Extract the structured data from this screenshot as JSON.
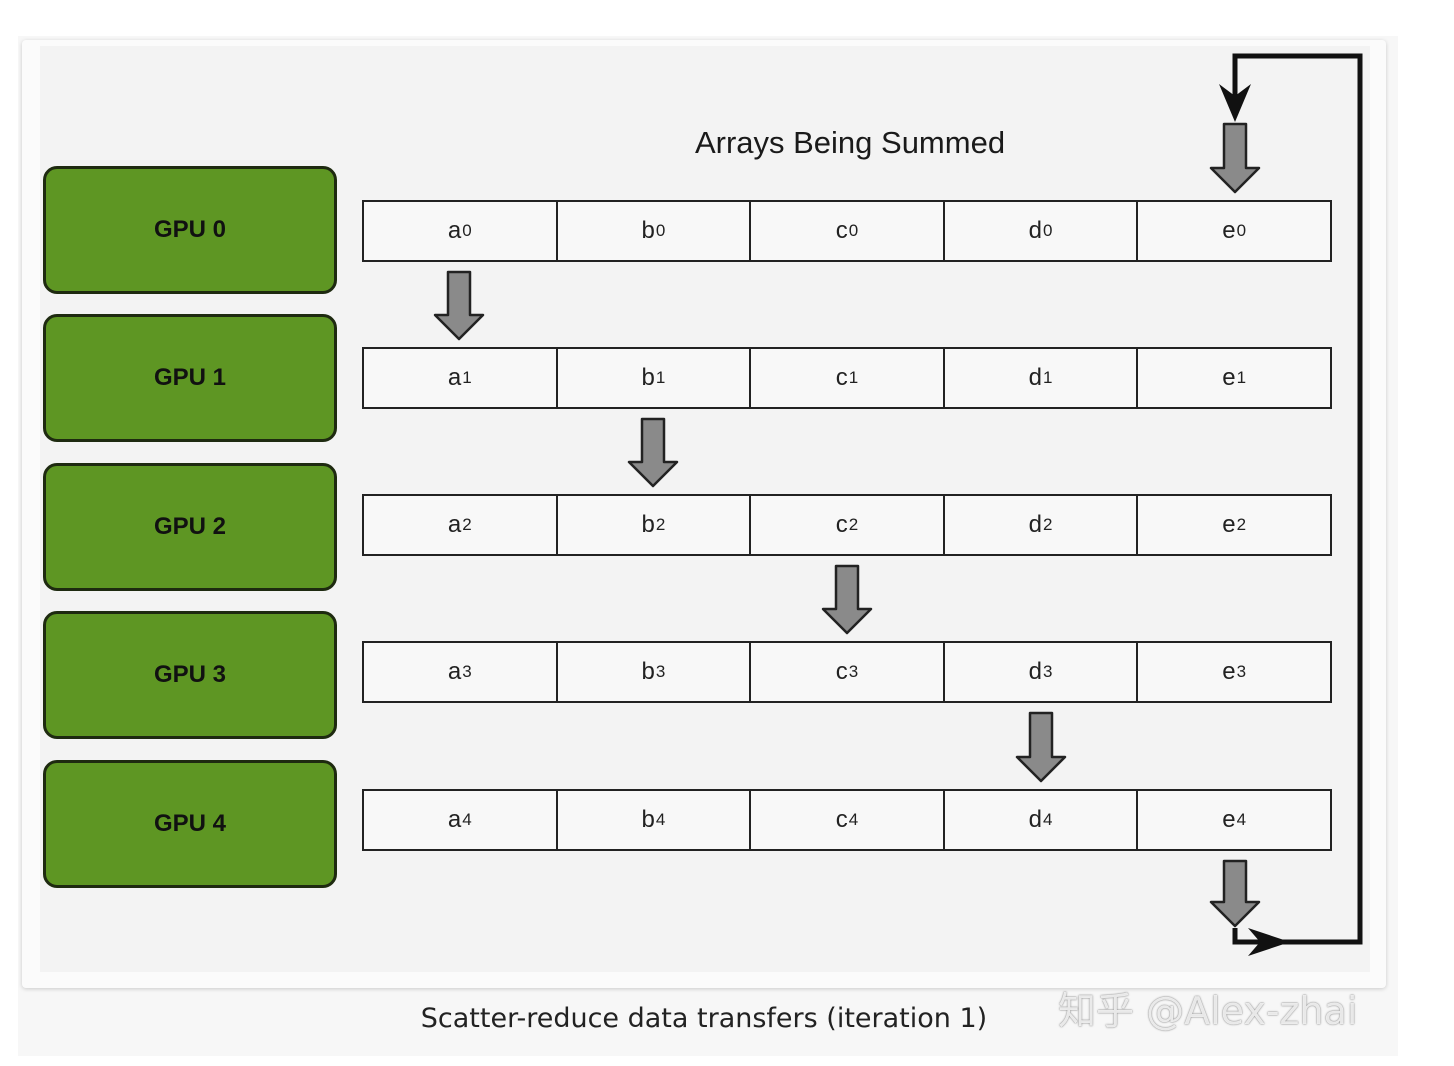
{
  "diagram": {
    "title": "Arrays Being Summed",
    "caption": "Scatter-reduce data transfers (iteration 1)",
    "watermark": "知乎 @Alex-zhai",
    "gpus": [
      "GPU 0",
      "GPU 1",
      "GPU 2",
      "GPU 3",
      "GPU 4"
    ],
    "rows": [
      [
        {
          "l": "a",
          "s": "0"
        },
        {
          "l": "b",
          "s": "0"
        },
        {
          "l": "c",
          "s": "0"
        },
        {
          "l": "d",
          "s": "0"
        },
        {
          "l": "e",
          "s": "0"
        }
      ],
      [
        {
          "l": "a",
          "s": "1"
        },
        {
          "l": "b",
          "s": "1"
        },
        {
          "l": "c",
          "s": "1"
        },
        {
          "l": "d",
          "s": "1"
        },
        {
          "l": "e",
          "s": "1"
        }
      ],
      [
        {
          "l": "a",
          "s": "2"
        },
        {
          "l": "b",
          "s": "2"
        },
        {
          "l": "c",
          "s": "2"
        },
        {
          "l": "d",
          "s": "2"
        },
        {
          "l": "e",
          "s": "2"
        }
      ],
      [
        {
          "l": "a",
          "s": "3"
        },
        {
          "l": "b",
          "s": "3"
        },
        {
          "l": "c",
          "s": "3"
        },
        {
          "l": "d",
          "s": "3"
        },
        {
          "l": "e",
          "s": "3"
        }
      ],
      [
        {
          "l": "a",
          "s": "4"
        },
        {
          "l": "b",
          "s": "4"
        },
        {
          "l": "c",
          "s": "4"
        },
        {
          "l": "d",
          "s": "4"
        },
        {
          "l": "e",
          "s": "4"
        }
      ]
    ],
    "transfers": [
      {
        "from_row": 0,
        "to_row": 1,
        "column": 0
      },
      {
        "from_row": 1,
        "to_row": 2,
        "column": 1
      },
      {
        "from_row": 2,
        "to_row": 3,
        "column": 2
      },
      {
        "from_row": 3,
        "to_row": 4,
        "column": 3
      },
      {
        "from_row": 4,
        "to_row": 0,
        "column": 4,
        "wraps": true
      }
    ],
    "colors": {
      "gpu_fill": "#5e9623",
      "gpu_border": "#1e2a10",
      "arrow_fill": "#8a8a8a",
      "arrow_stroke": "#222222",
      "loop_line": "#111111"
    }
  }
}
